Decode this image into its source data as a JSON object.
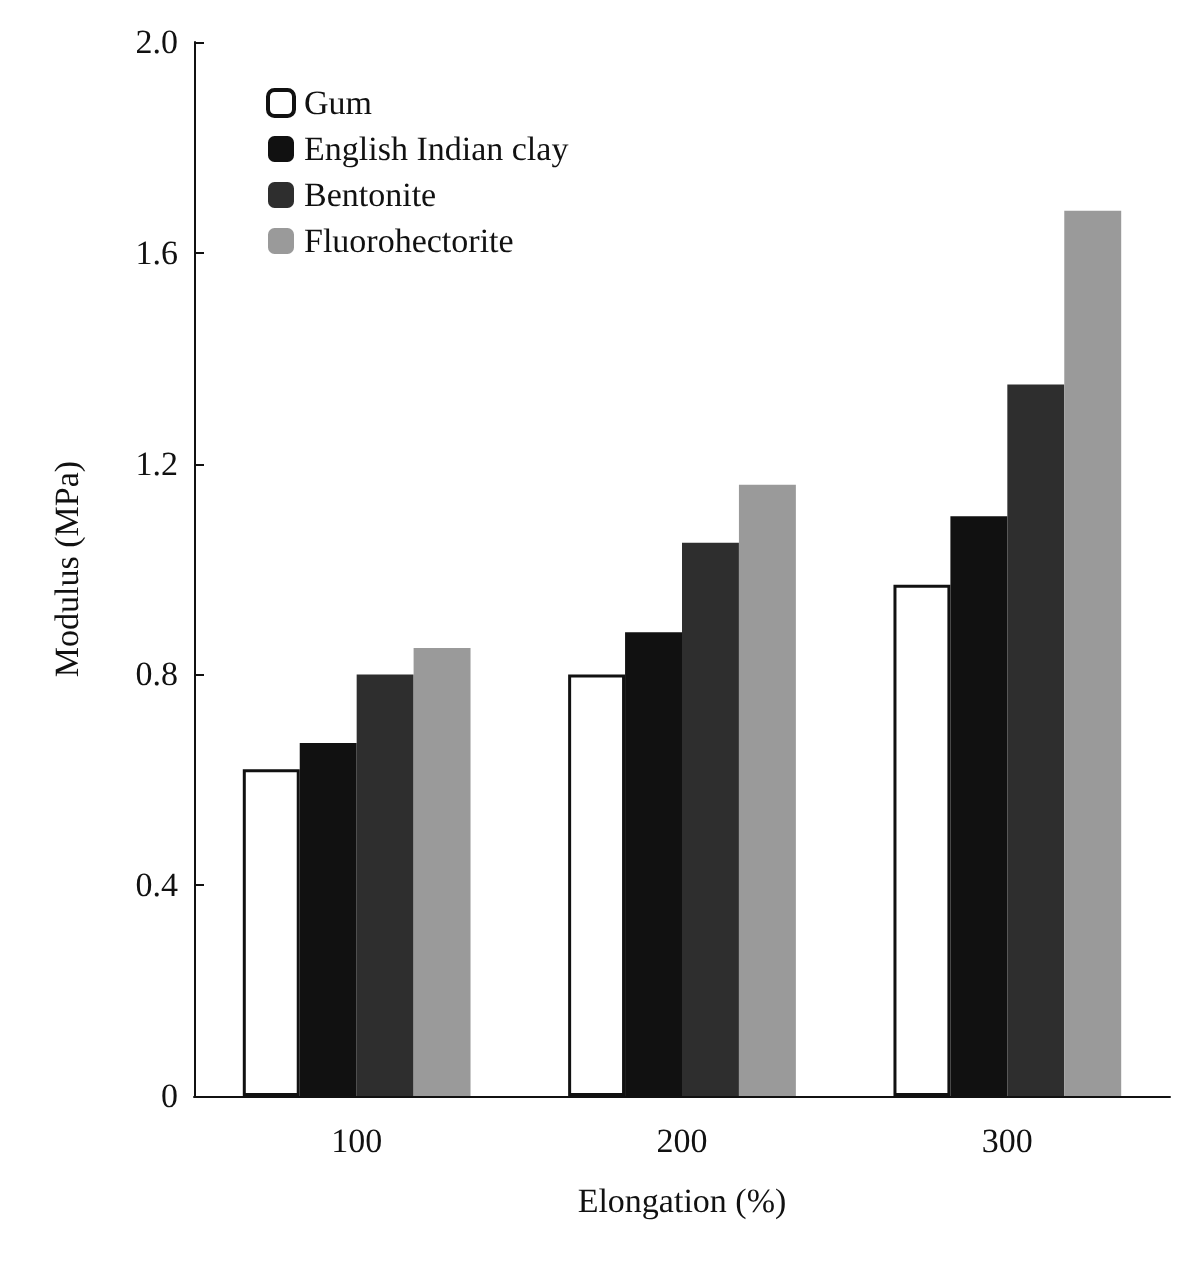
{
  "chart_data": {
    "type": "bar",
    "xlabel": "Elongation (%)",
    "ylabel": "Modulus (MPa)",
    "categories": [
      "100",
      "200",
      "300"
    ],
    "series": [
      {
        "name": "Gum",
        "color": "#ffffff",
        "values": [
          0.62,
          0.8,
          0.97
        ]
      },
      {
        "name": "English Indian clay",
        "color": "#111111",
        "values": [
          0.67,
          0.88,
          1.1
        ]
      },
      {
        "name": "Bentonite",
        "color": "#2e2e2e",
        "values": [
          0.8,
          1.05,
          1.35
        ]
      },
      {
        "name": "Fluorohectorite",
        "color": "#9a9a9a",
        "values": [
          0.85,
          1.16,
          1.68
        ]
      }
    ],
    "ylim": [
      0,
      2.0
    ],
    "yticks": [
      {
        "value": 0,
        "label": "0"
      },
      0.4,
      0.8,
      1.2,
      1.6,
      {
        "value": 2.0,
        "label": "2.0"
      }
    ],
    "grid": false,
    "legend": "top left"
  }
}
